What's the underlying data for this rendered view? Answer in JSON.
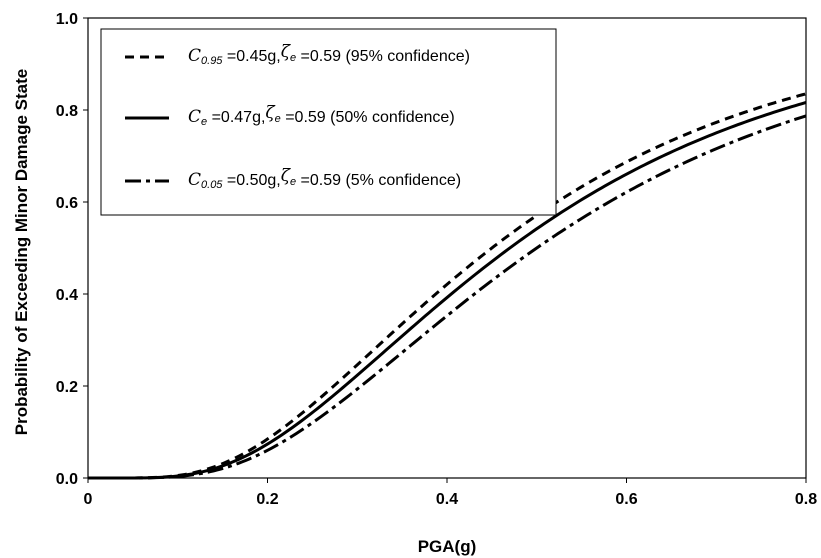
{
  "chart_data": {
    "type": "line",
    "xlabel": "PGA(g)",
    "ylabel": "Probability of Exceeding Minor Damage State",
    "xlim": [
      0,
      0.8
    ],
    "ylim": [
      0,
      1.0
    ],
    "x_ticks": [
      "0",
      "0.2",
      "0.4",
      "0.6",
      "0.8"
    ],
    "y_ticks": [
      "0.0",
      "0.2",
      "0.4",
      "0.6",
      "0.8",
      "1.0"
    ],
    "grid": false,
    "legend_position": "top-left",
    "series": [
      {
        "name": "C0.95 =0.45g, ζe =0.59 (95% confidence)",
        "legend": {
          "sym": "C",
          "sub": "0.95",
          "value": "=0.45g,",
          "zeta": "ζ",
          "zeta_sub": "e",
          "text": "=0.59 (95% confidence)"
        },
        "dash": "short-dash",
        "median": 0.45,
        "dispersion": 0.59
      },
      {
        "name": "Ce =0.47g, ζe =0.59 (50% confidence)",
        "legend": {
          "sym": "C",
          "sub": "e",
          "value": "=0.47g,",
          "zeta": "ζ",
          "zeta_sub": "e",
          "text": "=0.59 (50% confidence)"
        },
        "dash": "solid",
        "median": 0.47,
        "dispersion": 0.59
      },
      {
        "name": "C0.05 =0.50g, ζe =0.59 (5% confidence)",
        "legend": {
          "sym": "C",
          "sub": "0.05",
          "value": "=0.50g,",
          "zeta": "ζ",
          "zeta_sub": "e",
          "text": "=0.59 (5% confidence)"
        },
        "dash": "dash-dot",
        "median": 0.5,
        "dispersion": 0.59
      }
    ]
  }
}
